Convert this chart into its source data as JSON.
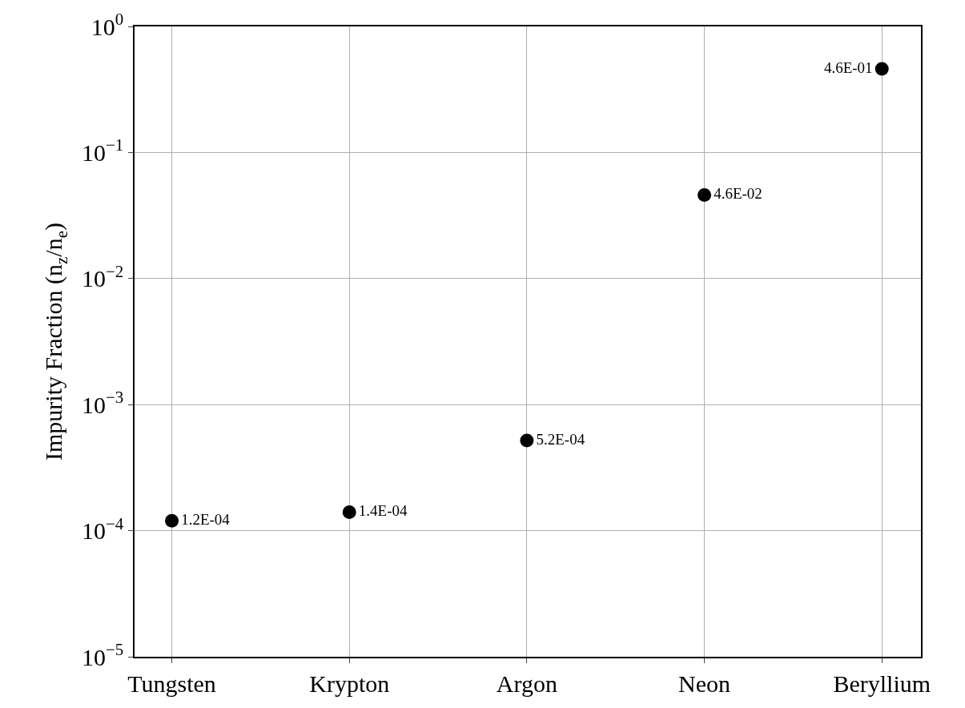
{
  "chart_data": {
    "type": "scatter",
    "ylabel": "Impurity Fraction (n$_{z}$/n$_{e}$)",
    "categories": [
      "Tungsten",
      "Krypton",
      "Argon",
      "Neon",
      "Beryllium"
    ],
    "series": [
      {
        "color": "#000000",
        "values": [
          0.00012,
          0.00014,
          0.00052,
          0.046,
          0.46
        ],
        "value_labels": [
          "1.2E-04",
          "1.4E-04",
          "5.2E-04",
          "4.6E-02",
          "4.6E-01"
        ]
      }
    ],
    "log": "y",
    "ylim": [
      1e-05,
      1
    ],
    "yticks": [
      {
        "value": 1e-05,
        "label": "10$^{−5}$"
      },
      {
        "value": 0.0001,
        "label": "10$^{−4}$"
      },
      {
        "value": 0.001,
        "label": "10$^{−3}$"
      },
      {
        "value": 0.01,
        "label": "10$^{−2}$"
      },
      {
        "value": 0.1,
        "label": "10$^{−1}$"
      },
      {
        "value": 1,
        "label": "10$^{0}$"
      }
    ],
    "grid": true,
    "marker": "circle",
    "legend": false
  }
}
